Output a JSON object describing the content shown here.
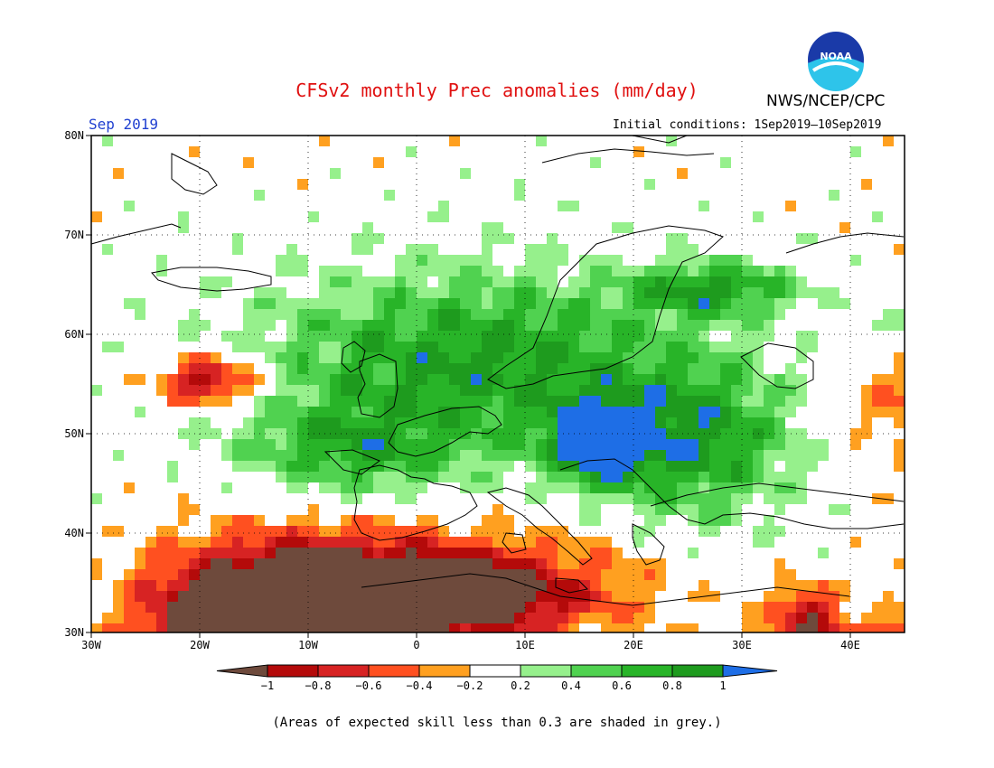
{
  "title": "CFSv2 monthly Prec anomalies (mm/day)",
  "agency": "NWS/NCEP/CPC",
  "logo_text": "NOAA",
  "month": "Sep 2019",
  "initial_conditions": "Initial conditions: 1Sep2019—10Sep2019",
  "footnote": "(Areas of expected skill less than 0.3 are shaded in grey.)",
  "map": {
    "lon_range": [
      -30,
      45
    ],
    "lat_range": [
      30,
      80
    ],
    "lat_ticks": [
      "80N",
      "70N",
      "60N",
      "50N",
      "40N",
      "30N"
    ],
    "lon_ticks": [
      "30W",
      "20W",
      "10W",
      "0",
      "10E",
      "20E",
      "30E",
      "40E"
    ]
  },
  "colorbar": {
    "labels": [
      "−1",
      "−0.8",
      "−0.6",
      "−0.4",
      "−0.2",
      "0.2",
      "0.4",
      "0.6",
      "0.8",
      "1"
    ],
    "colors": [
      "#6e4a3c",
      "#b40a0a",
      "#d72323",
      "#ff5020",
      "#ffa020",
      "#ffffff",
      "#96f08c",
      "#50d250",
      "#28b428",
      "#1e9b1e",
      "#1e6ee6"
    ]
  }
}
